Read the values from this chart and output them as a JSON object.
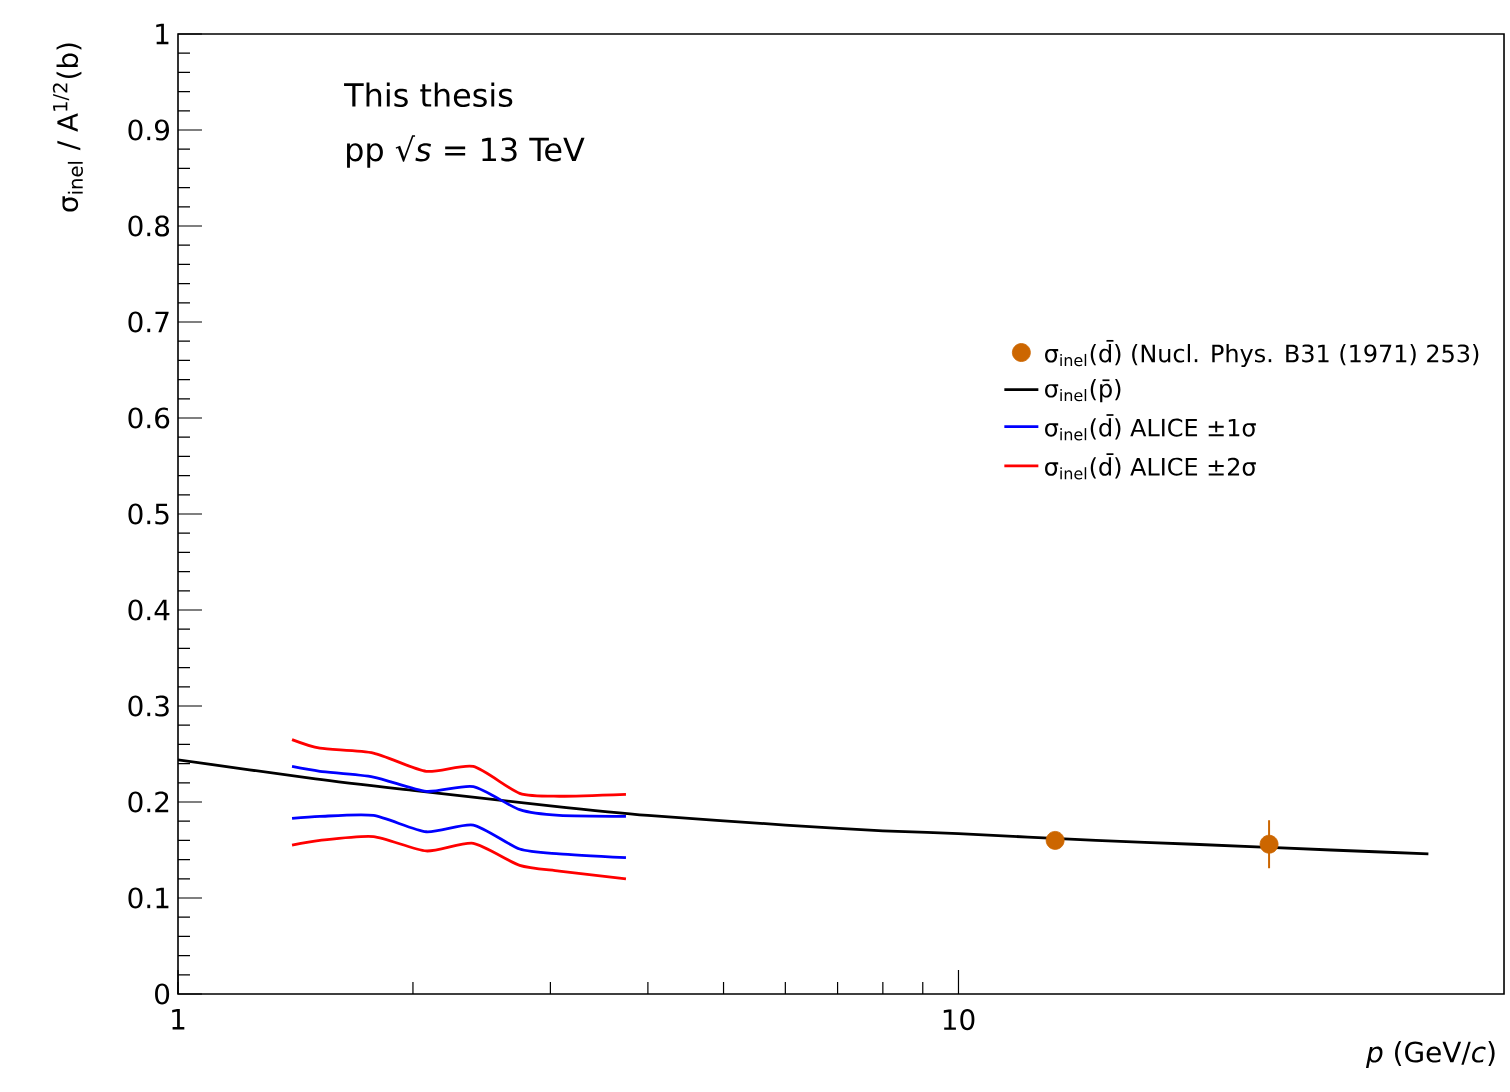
{
  "chart_data": {
    "type": "line",
    "xlabel": "*p* (GeV/*c*)",
    "ylabel": "σ$_{inel}$ / A$^{1/2}$(b)",
    "annotations": [
      "This thesis",
      "pp  √*s* = 13 TeV"
    ],
    "log": "x",
    "xlim": [
      1,
      50
    ],
    "xticks": [
      1,
      10
    ],
    "ylim": [
      0,
      1
    ],
    "yticks": [
      0,
      0.1,
      0.2,
      0.3,
      0.4,
      0.5,
      0.6,
      0.7,
      0.8,
      0.9,
      1
    ],
    "grid": false,
    "legend": "right",
    "marker": "circle",
    "series": [
      {
        "name": "σ$_{inel}$(d̄) (Nucl. Phys. B31 (1971) 253)",
        "type": "scatter",
        "color": "#cc6600",
        "x": [
          13.3,
          25
        ],
        "values": [
          0.16,
          0.156
        ],
        "errors": [
          null,
          0.025
        ]
      },
      {
        "name": "σ$_{inel}$(p̄)",
        "type": "line",
        "marker": "none",
        "color": "#000000",
        "x": [
          1,
          1.5,
          2,
          3,
          4,
          6,
          8,
          10,
          15,
          20,
          30,
          40
        ],
        "values": [
          0.244,
          0.224,
          0.212,
          0.196,
          0.186,
          0.176,
          0.17,
          0.167,
          0.16,
          0.156,
          0.15,
          0.146
        ]
      },
      {
        "name": "σ$_{inel}$(d̄) ALICE ±1σ",
        "type": "line",
        "marker": "none",
        "color": "#0000ff",
        "x": [
          1.4,
          1.52,
          1.78,
          2.08,
          2.39,
          2.74,
          3.08,
          3.75
        ],
        "values": [
          0.237,
          0.232,
          0.226,
          0.211,
          0.216,
          0.192,
          0.186,
          0.185
        ]
      },
      {
        "type": "line",
        "marker": "none",
        "color": "#0000ff",
        "x": [
          1.4,
          1.52,
          1.78,
          2.08,
          2.39,
          2.74,
          3.08,
          3.75
        ],
        "values": [
          0.183,
          0.185,
          0.186,
          0.169,
          0.176,
          0.151,
          0.146,
          0.142
        ]
      },
      {
        "name": "σ$_{inel}$(d̄) ALICE ±2σ",
        "type": "line",
        "marker": "none",
        "color": "#ff0000",
        "x": [
          1.4,
          1.52,
          1.78,
          2.08,
          2.39,
          2.74,
          3.08,
          3.75
        ],
        "values": [
          0.265,
          0.256,
          0.251,
          0.232,
          0.237,
          0.209,
          0.206,
          0.208
        ]
      },
      {
        "type": "line",
        "marker": "none",
        "color": "#ff0000",
        "x": [
          1.4,
          1.52,
          1.78,
          2.08,
          2.39,
          2.74,
          3.08,
          3.75
        ],
        "values": [
          0.155,
          0.16,
          0.164,
          0.149,
          0.157,
          0.134,
          0.128,
          0.12
        ]
      }
    ]
  }
}
